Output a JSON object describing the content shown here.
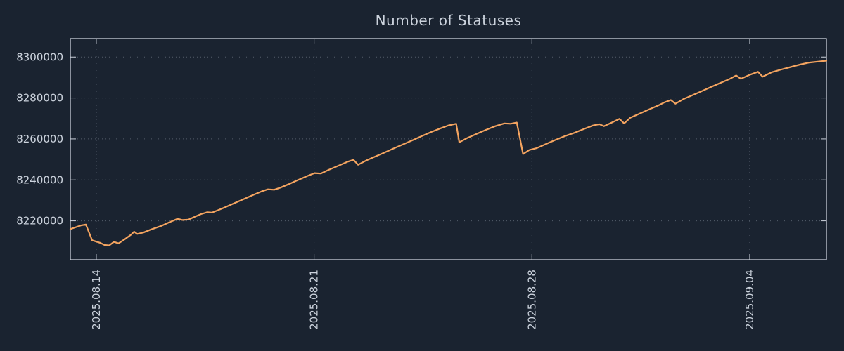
{
  "colors": {
    "background": "#1a2330",
    "line": "#f4a460",
    "text": "#ccd3dd",
    "frame": "#c9cfd9",
    "grid": "#9aa3b2"
  },
  "chart_data": {
    "type": "line",
    "title": "Number of Statuses",
    "xlabel": "",
    "ylabel": "",
    "legend": "none",
    "grid": true,
    "x_unit": "days_from_plot_left_edge (plot spans ~2025.08.13 04:00 to ~2025.09.06 11:00)",
    "x_range": [
      0,
      24.3
    ],
    "y_range": [
      8201000,
      8309000
    ],
    "x_ticks": [
      {
        "pos": 0.835,
        "label": "2025.08.14"
      },
      {
        "pos": 7.835,
        "label": "2025.08.21"
      },
      {
        "pos": 14.835,
        "label": "2025.08.28"
      },
      {
        "pos": 21.835,
        "label": "2025.09.04"
      }
    ],
    "y_ticks": [
      {
        "value": 8220000,
        "label": "8220000"
      },
      {
        "value": 8240000,
        "label": "8240000"
      },
      {
        "value": 8260000,
        "label": "8260000"
      },
      {
        "value": 8280000,
        "label": "8280000"
      },
      {
        "value": 8300000,
        "label": "8300000"
      }
    ],
    "series": [
      {
        "name": "statuses",
        "color": "#f4a460",
        "points": [
          [
            0.0,
            8216000
          ],
          [
            0.35,
            8217800
          ],
          [
            0.5,
            8218200
          ],
          [
            0.7,
            8210500
          ],
          [
            0.95,
            8209300
          ],
          [
            1.1,
            8208200
          ],
          [
            1.25,
            8208000
          ],
          [
            1.4,
            8209700
          ],
          [
            1.55,
            8209000
          ],
          [
            1.75,
            8211000
          ],
          [
            1.95,
            8213200
          ],
          [
            2.05,
            8214700
          ],
          [
            2.15,
            8213600
          ],
          [
            2.35,
            8214300
          ],
          [
            2.6,
            8215800
          ],
          [
            2.9,
            8217400
          ],
          [
            3.2,
            8219400
          ],
          [
            3.45,
            8221000
          ],
          [
            3.6,
            8220400
          ],
          [
            3.8,
            8220600
          ],
          [
            4.0,
            8222000
          ],
          [
            4.2,
            8223300
          ],
          [
            4.4,
            8224200
          ],
          [
            4.55,
            8224000
          ],
          [
            4.75,
            8225200
          ],
          [
            5.0,
            8226800
          ],
          [
            5.3,
            8228800
          ],
          [
            5.6,
            8230800
          ],
          [
            5.9,
            8232800
          ],
          [
            6.15,
            8234400
          ],
          [
            6.35,
            8235400
          ],
          [
            6.55,
            8235200
          ],
          [
            6.75,
            8236200
          ],
          [
            7.0,
            8237800
          ],
          [
            7.3,
            8239800
          ],
          [
            7.6,
            8241800
          ],
          [
            7.85,
            8243300
          ],
          [
            8.05,
            8243100
          ],
          [
            8.3,
            8244900
          ],
          [
            8.6,
            8246800
          ],
          [
            8.9,
            8248800
          ],
          [
            9.1,
            8249800
          ],
          [
            9.25,
            8247400
          ],
          [
            9.5,
            8249400
          ],
          [
            9.8,
            8251400
          ],
          [
            10.1,
            8253400
          ],
          [
            10.4,
            8255400
          ],
          [
            10.7,
            8257400
          ],
          [
            11.0,
            8259400
          ],
          [
            11.3,
            8261400
          ],
          [
            11.6,
            8263400
          ],
          [
            11.9,
            8265200
          ],
          [
            12.15,
            8266600
          ],
          [
            12.4,
            8267400
          ],
          [
            12.5,
            8258400
          ],
          [
            12.75,
            8260400
          ],
          [
            13.05,
            8262400
          ],
          [
            13.35,
            8264400
          ],
          [
            13.65,
            8266200
          ],
          [
            13.95,
            8267600
          ],
          [
            14.15,
            8267400
          ],
          [
            14.35,
            8268000
          ],
          [
            14.55,
            8252600
          ],
          [
            14.75,
            8254600
          ],
          [
            15.0,
            8255600
          ],
          [
            15.3,
            8257600
          ],
          [
            15.6,
            8259600
          ],
          [
            15.9,
            8261400
          ],
          [
            16.2,
            8263000
          ],
          [
            16.5,
            8264800
          ],
          [
            16.8,
            8266600
          ],
          [
            17.0,
            8267200
          ],
          [
            17.15,
            8266200
          ],
          [
            17.4,
            8268000
          ],
          [
            17.65,
            8269800
          ],
          [
            17.8,
            8267600
          ],
          [
            18.0,
            8270400
          ],
          [
            18.3,
            8272400
          ],
          [
            18.6,
            8274400
          ],
          [
            18.9,
            8276400
          ],
          [
            19.1,
            8277900
          ],
          [
            19.3,
            8279000
          ],
          [
            19.45,
            8277200
          ],
          [
            19.7,
            8279400
          ],
          [
            20.0,
            8281400
          ],
          [
            20.3,
            8283400
          ],
          [
            20.6,
            8285400
          ],
          [
            20.9,
            8287400
          ],
          [
            21.2,
            8289400
          ],
          [
            21.4,
            8291000
          ],
          [
            21.55,
            8289400
          ],
          [
            21.85,
            8291400
          ],
          [
            22.1,
            8292800
          ],
          [
            22.25,
            8290400
          ],
          [
            22.55,
            8292600
          ],
          [
            22.85,
            8293900
          ],
          [
            23.15,
            8295100
          ],
          [
            23.45,
            8296300
          ],
          [
            23.75,
            8297300
          ],
          [
            24.05,
            8297800
          ],
          [
            24.3,
            8298200
          ]
        ]
      }
    ]
  }
}
